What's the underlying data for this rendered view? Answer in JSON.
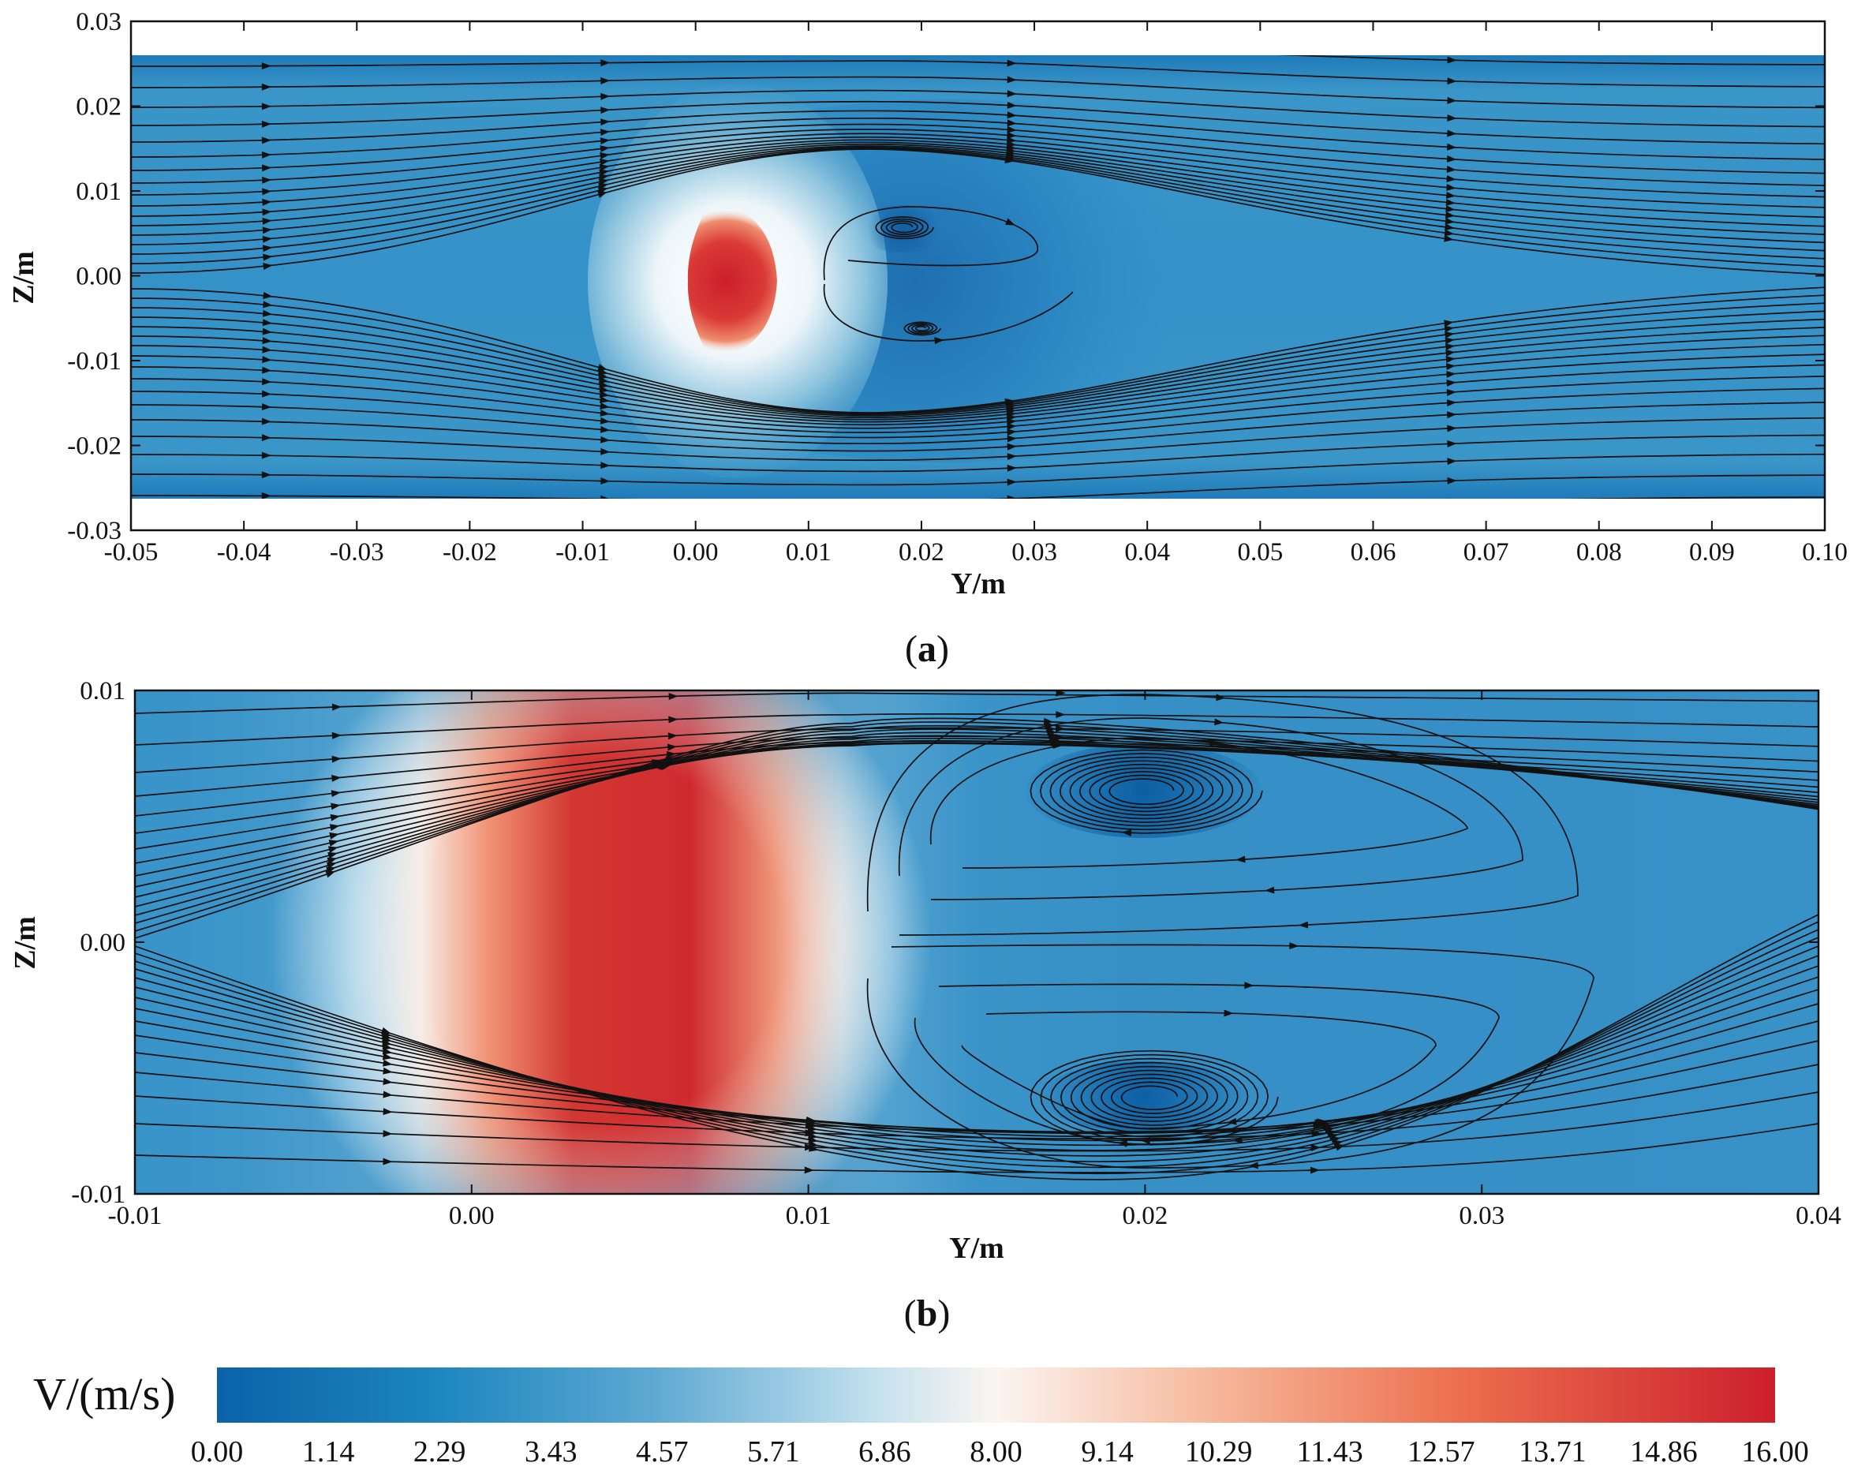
{
  "chart_data": [
    {
      "type": "heatmap",
      "subtype": "velocity contour with streamlines",
      "panel_label": "(a)",
      "panel_label_parts": {
        "open": "(",
        "letter": "a",
        "close": ")"
      },
      "xlabel": "Y/m",
      "ylabel": "Z/m",
      "xlim": [
        -0.05,
        0.1
      ],
      "ylim": [
        -0.03,
        0.03
      ],
      "field_extent_z": [
        -0.026,
        0.026
      ],
      "x_ticks": [
        -0.05,
        -0.04,
        -0.03,
        -0.02,
        -0.01,
        0.0,
        0.01,
        0.02,
        0.03,
        0.04,
        0.05,
        0.06,
        0.07,
        0.08,
        0.09,
        0.1
      ],
      "x_tick_labels": [
        "-0.05",
        "-0.04",
        "-0.03",
        "-0.02",
        "-0.01",
        "0.00",
        "0.01",
        "0.02",
        "0.03",
        "0.04",
        "0.05",
        "0.06",
        "0.07",
        "0.08",
        "0.09",
        "0.10"
      ],
      "y_ticks": [
        0.03,
        0.02,
        0.01,
        0.0,
        -0.01,
        -0.02,
        -0.03
      ],
      "y_tick_labels": [
        "0.03",
        "0.02",
        "0.01",
        "0.00",
        "-0.01",
        "-0.02",
        "-0.03"
      ],
      "features": [
        {
          "name": "high-velocity core",
          "y_range": [
            0.0,
            0.008
          ],
          "z_range": [
            -0.008,
            0.008
          ],
          "velocity_ms": 15.5
        },
        {
          "name": "upper recirculation vortex",
          "y": 0.02,
          "z": 0.0065,
          "velocity_ms": 0.3
        },
        {
          "name": "lower recirculation vortex",
          "y": 0.02,
          "z": -0.0063,
          "velocity_ms": 0.3
        },
        {
          "name": "recirculation wake region",
          "y_range": [
            0.011,
            0.032
          ],
          "z_range": [
            -0.009,
            0.009
          ]
        }
      ]
    },
    {
      "type": "heatmap",
      "subtype": "velocity contour with streamlines (zoom)",
      "panel_label": "(b)",
      "panel_label_parts": {
        "open": "(",
        "letter": "b",
        "close": ")"
      },
      "xlabel": "Y/m",
      "ylabel": "Z/m",
      "xlim": [
        -0.01,
        0.04
      ],
      "ylim": [
        -0.01,
        0.01
      ],
      "x_ticks": [
        -0.01,
        0.0,
        0.01,
        0.02,
        0.03,
        0.04
      ],
      "x_tick_labels": [
        "-0.01",
        "0.00",
        "0.01",
        "0.02",
        "0.03",
        "0.04"
      ],
      "y_ticks": [
        0.01,
        0.0,
        -0.01
      ],
      "y_tick_labels": [
        "0.01",
        "0.00",
        "-0.01"
      ],
      "features": [
        {
          "name": "high-velocity core",
          "y_range": [
            0.001,
            0.009
          ],
          "z_range": [
            -0.0075,
            0.0075
          ],
          "velocity_ms": 15.5
        },
        {
          "name": "upper recirculation vortex",
          "y": 0.02,
          "z": 0.0065,
          "velocity_ms": 0.3
        },
        {
          "name": "lower recirculation vortex",
          "y": 0.02,
          "z": -0.0063,
          "velocity_ms": 0.3
        }
      ]
    }
  ],
  "colorbar": {
    "title": "V/(m/s)",
    "min": 0.0,
    "max": 16.0,
    "tick_labels": [
      "0.00",
      "1.14",
      "2.29",
      "3.43",
      "4.57",
      "5.71",
      "6.86",
      "8.00",
      "9.14",
      "10.29",
      "11.43",
      "12.57",
      "13.71",
      "14.86",
      "16.00"
    ],
    "colors": [
      "#0b62a8",
      "#1c86bf",
      "#5ea9d2",
      "#c2e0ee",
      "#fbf5f1",
      "#f6b79a",
      "#ec6e4d",
      "#cc1f2c"
    ]
  }
}
